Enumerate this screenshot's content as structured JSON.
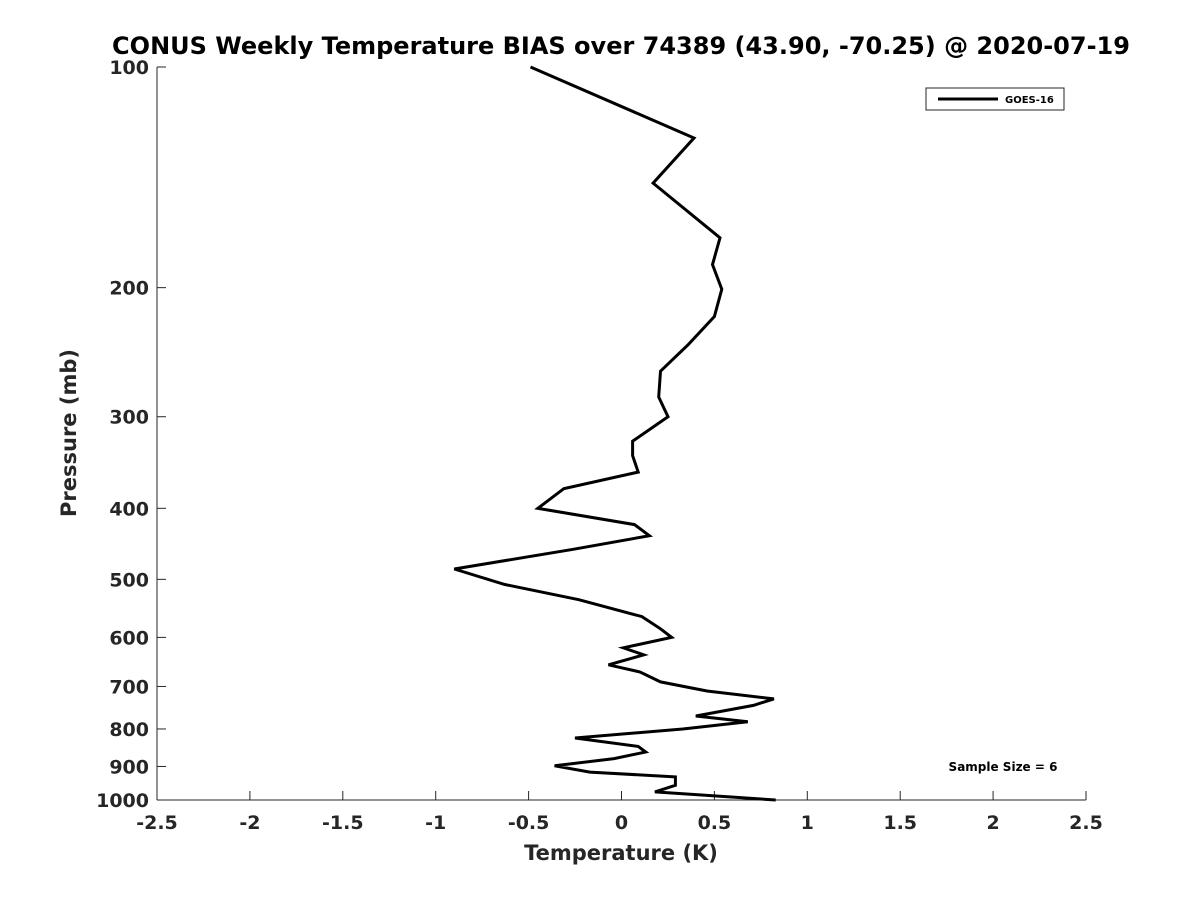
{
  "chart_data": {
    "type": "line",
    "title": "CONUS Weekly Temperature BIAS over 74389 (43.90, -70.25) @ 2020-07-19",
    "xlabel": "Temperature (K)",
    "ylabel": "Pressure (mb)",
    "xlim": [
      -2.5,
      2.5
    ],
    "ylim": [
      100,
      1000
    ],
    "y_scale": "log",
    "y_reversed": true,
    "grid": false,
    "legend_position": "top-right",
    "x_ticks": [
      "-2.5",
      "-2",
      "-1.5",
      "-1",
      "-0.5",
      "0",
      "0.5",
      "1",
      "1.5",
      "2",
      "2.5"
    ],
    "y_ticks": [
      "100",
      "200",
      "300",
      "400",
      "500",
      "600",
      "700",
      "800",
      "900",
      "1000"
    ],
    "annotation": "Sample Size = 6",
    "series": [
      {
        "name": "GOES-16",
        "color": "#000000",
        "points": [
          {
            "x": -0.49,
            "y": 100
          },
          {
            "x": 0.39,
            "y": 125
          },
          {
            "x": 0.17,
            "y": 144
          },
          {
            "x": 0.53,
            "y": 171
          },
          {
            "x": 0.49,
            "y": 186
          },
          {
            "x": 0.54,
            "y": 201
          },
          {
            "x": 0.5,
            "y": 219
          },
          {
            "x": 0.36,
            "y": 239
          },
          {
            "x": 0.21,
            "y": 260
          },
          {
            "x": 0.2,
            "y": 282
          },
          {
            "x": 0.25,
            "y": 300
          },
          {
            "x": 0.06,
            "y": 324
          },
          {
            "x": 0.06,
            "y": 339
          },
          {
            "x": 0.09,
            "y": 357
          },
          {
            "x": -0.31,
            "y": 376
          },
          {
            "x": -0.45,
            "y": 400
          },
          {
            "x": 0.07,
            "y": 421
          },
          {
            "x": 0.15,
            "y": 436
          },
          {
            "x": -0.26,
            "y": 455
          },
          {
            "x": -0.9,
            "y": 484
          },
          {
            "x": -0.63,
            "y": 508
          },
          {
            "x": -0.23,
            "y": 533
          },
          {
            "x": 0.11,
            "y": 562
          },
          {
            "x": 0.21,
            "y": 584
          },
          {
            "x": 0.27,
            "y": 600
          },
          {
            "x": 0.01,
            "y": 620
          },
          {
            "x": 0.12,
            "y": 634
          },
          {
            "x": -0.07,
            "y": 654
          },
          {
            "x": 0.1,
            "y": 669
          },
          {
            "x": 0.21,
            "y": 690
          },
          {
            "x": 0.46,
            "y": 710
          },
          {
            "x": 0.82,
            "y": 728
          },
          {
            "x": 0.71,
            "y": 743
          },
          {
            "x": 0.4,
            "y": 768
          },
          {
            "x": 0.68,
            "y": 782
          },
          {
            "x": 0.33,
            "y": 800
          },
          {
            "x": -0.25,
            "y": 823
          },
          {
            "x": 0.09,
            "y": 845
          },
          {
            "x": 0.13,
            "y": 860
          },
          {
            "x": -0.04,
            "y": 878
          },
          {
            "x": -0.36,
            "y": 898
          },
          {
            "x": -0.17,
            "y": 916
          },
          {
            "x": 0.29,
            "y": 930
          },
          {
            "x": 0.29,
            "y": 955
          },
          {
            "x": 0.18,
            "y": 975
          },
          {
            "x": 0.83,
            "y": 1000
          }
        ]
      }
    ]
  }
}
